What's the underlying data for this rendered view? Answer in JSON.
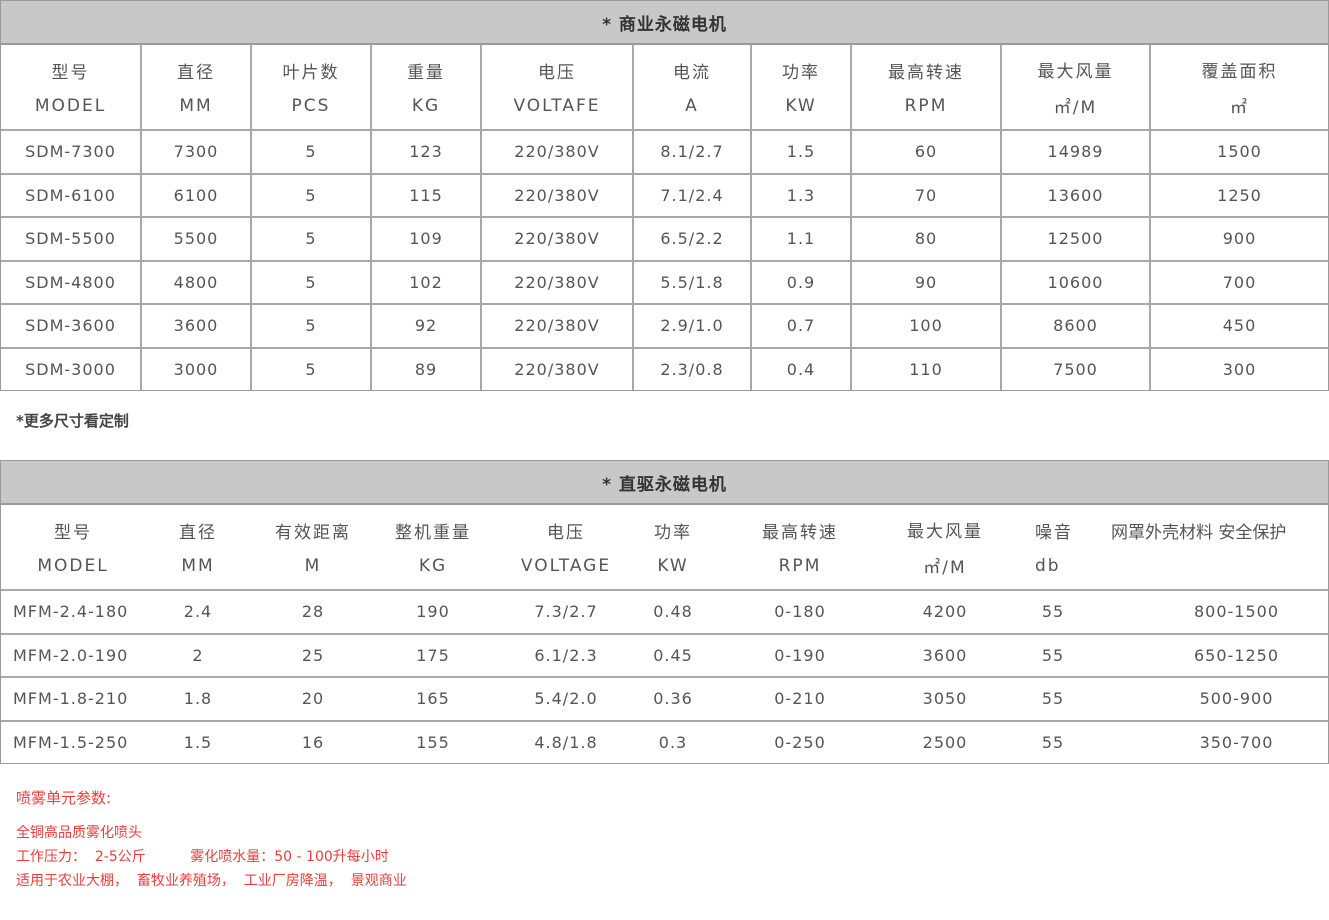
{
  "table1": {
    "title": "* 商业永磁电机",
    "headers": [
      [
        "型号",
        "MODEL"
      ],
      [
        "直径",
        "MM"
      ],
      [
        "叶片数",
        "PCS"
      ],
      [
        "重量",
        "KG"
      ],
      [
        "电压",
        "VOLTAFE"
      ],
      [
        "电流",
        "A"
      ],
      [
        "功率",
        "KW"
      ],
      [
        "最高转速",
        "RPM"
      ],
      [
        "最大风量",
        "㎡/M"
      ],
      [
        "覆盖面积",
        "㎡"
      ]
    ],
    "rows": [
      [
        "SDM-7300",
        "7300",
        "5",
        "123",
        "220/380V",
        "8.1/2.7",
        "1.5",
        "60",
        "14989",
        "1500"
      ],
      [
        "SDM-6100",
        "6100",
        "5",
        "115",
        "220/380V",
        "7.1/2.4",
        "1.3",
        "70",
        "13600",
        "1250"
      ],
      [
        "SDM-5500",
        "5500",
        "5",
        "109",
        "220/380V",
        "6.5/2.2",
        "1.1",
        "80",
        "12500",
        "900"
      ],
      [
        "SDM-4800",
        "4800",
        "5",
        "102",
        "220/380V",
        "5.5/1.8",
        "0.9",
        "90",
        "10600",
        "700"
      ],
      [
        "SDM-3600",
        "3600",
        "5",
        "92",
        "220/380V",
        "2.9/1.0",
        "0.7",
        "100",
        "8600",
        "450"
      ],
      [
        "SDM-3000",
        "3000",
        "5",
        "89",
        "220/380V",
        "2.3/0.8",
        "0.4",
        "110",
        "7500",
        "300"
      ]
    ]
  },
  "note": "*更多尺寸看定制",
  "table2": {
    "title": "* 直驱永磁电机",
    "headers": [
      [
        "型号",
        "MODEL"
      ],
      [
        "直径",
        "MM"
      ],
      [
        "有效距离",
        "M"
      ],
      [
        "整机重量",
        "KG"
      ],
      [
        "电压",
        "VOLTAGE"
      ],
      [
        "功率",
        "KW"
      ],
      [
        "最高转速",
        "RPM"
      ],
      [
        "最大风量",
        "㎡/M"
      ],
      [
        "噪音",
        "db"
      ],
      [
        "网罩外壳材料 安全保护",
        ""
      ]
    ],
    "rows": [
      [
        "MFM-2.4-180",
        "2.4",
        "28",
        "190",
        "7.3/2.7",
        "0.48",
        "0-180",
        "4200",
        "55",
        "800-1500"
      ],
      [
        "MFM-2.0-190",
        "2",
        "25",
        "175",
        "6.1/2.3",
        "0.45",
        "0-190",
        "3600",
        "55",
        "650-1250"
      ],
      [
        "MFM-1.8-210",
        "1.8",
        "20",
        "165",
        "5.4/2.0",
        "0.36",
        "0-210",
        "3050",
        "55",
        "500-900"
      ],
      [
        "MFM-1.5-250",
        "1.5",
        "16",
        "155",
        "4.8/1.8",
        "0.3",
        "0-250",
        "2500",
        "55",
        "350-700"
      ]
    ]
  },
  "spray": {
    "title": "喷雾单元参数:",
    "lines": [
      "全铜高品质雾化喷头",
      "工作压力：  2-5公斤          雾化喷水量：50 - 100升每小时",
      "适用于农业大棚，  畜牧业养殖场，  工业厂房降温，  景观商业"
    ]
  },
  "colors": {
    "header_bg": "#c8c8c8",
    "border": "#9a9a9a",
    "accent_red": "#f03c3c"
  }
}
